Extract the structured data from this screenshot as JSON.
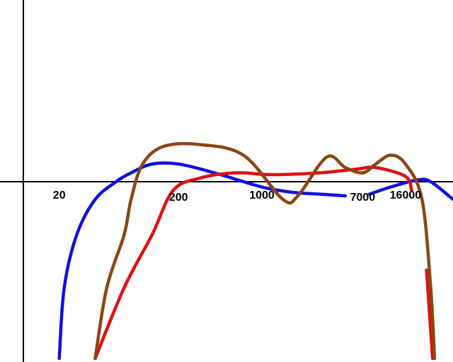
{
  "chart_data": {
    "type": "line",
    "title": "",
    "xlabel": "",
    "ylabel": "",
    "xscale": "log",
    "tick_labels": [
      "20",
      "200",
      "1000",
      "7000",
      "16000"
    ],
    "grid": false,
    "legend": "none",
    "series": [
      {
        "color": "#1010e0",
        "segments": [
          [
            [
              20,
              -100
            ],
            [
              22,
              -60
            ],
            [
              28,
              -30
            ],
            [
              40,
              -10
            ],
            [
              60,
              0
            ],
            [
              80,
              5
            ],
            [
              120,
              10
            ],
            [
              200,
              10
            ],
            [
              400,
              5
            ],
            [
              1000,
              -3
            ],
            [
              1800,
              -6
            ],
            [
              3000,
              -7
            ],
            [
              5000,
              -8
            ]
          ],
          [
            [
              8000,
              -7
            ],
            [
              12000,
              -3
            ],
            [
              20000,
              1
            ],
            [
              26000,
              0
            ],
            [
              40000,
              -10
            ]
          ]
        ]
      },
      {
        "color": "#e01010",
        "segments": [
          [
            [
              40,
              -100
            ],
            [
              70,
              -60
            ],
            [
              120,
              -30
            ],
            [
              180,
              -5
            ],
            [
              300,
              2
            ],
            [
              600,
              5
            ],
            [
              1200,
              4
            ],
            [
              3000,
              5
            ],
            [
              6000,
              7
            ],
            [
              9000,
              8
            ],
            [
              16000,
              3
            ],
            [
              18000,
              -5
            ]
          ],
          [
            [
              24000,
              -50
            ],
            [
              27000,
              -100
            ]
          ]
        ]
      },
      {
        "color": "#8b4513",
        "segments": [
          [
            [
              40,
              -100
            ],
            [
              50,
              -60
            ],
            [
              70,
              -30
            ],
            [
              80,
              -10
            ],
            [
              100,
              10
            ],
            [
              150,
              20
            ],
            [
              300,
              21
            ],
            [
              700,
              15
            ],
            [
              1500,
              -10
            ],
            [
              2000,
              -8
            ],
            [
              3500,
              14
            ],
            [
              5000,
              8
            ],
            [
              7000,
              5
            ],
            [
              9000,
              10
            ],
            [
              12000,
              15
            ],
            [
              16000,
              10
            ],
            [
              22000,
              -10
            ],
            [
              26000,
              -60
            ],
            [
              28000,
              -100
            ]
          ]
        ]
      }
    ]
  }
}
